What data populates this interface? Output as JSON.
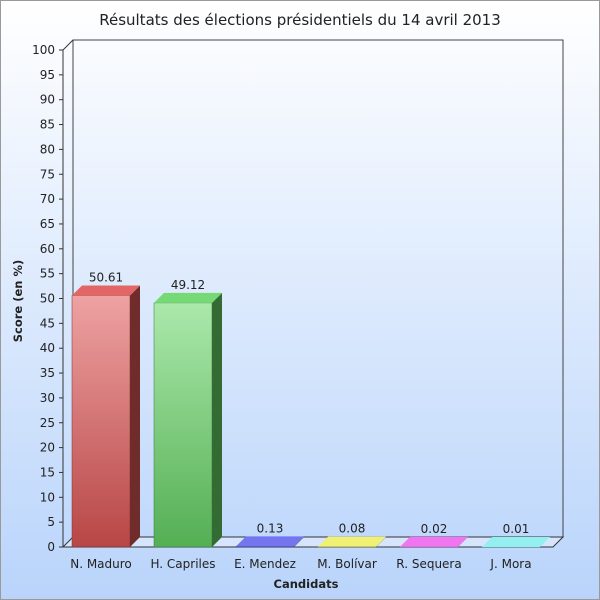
{
  "chart_data": {
    "type": "bar",
    "title": "Résultats des élections présidentiels du 14 avril 2013",
    "xlabel": "Candidats",
    "ylabel": "Score (en %)",
    "categories": [
      "N. Maduro",
      "H. Capriles",
      "E. Mendez",
      "M. Bolívar",
      "R. Sequera",
      "J. Mora"
    ],
    "values": [
      50.61,
      49.12,
      0.13,
      0.08,
      0.02,
      0.01
    ],
    "value_labels": [
      "50.61",
      "49.12",
      "0.13",
      "0.08",
      "0.02",
      "0.01"
    ],
    "ylim": [
      0,
      100
    ],
    "yticks": [
      0,
      5,
      10,
      15,
      20,
      25,
      30,
      35,
      40,
      45,
      50,
      55,
      60,
      65,
      70,
      75,
      80,
      85,
      90,
      95,
      100
    ],
    "grid": false,
    "legend": "none",
    "colors": [
      "#e05555",
      "#66d666",
      "#6666ee",
      "#eeee66",
      "#ee66ee",
      "#88eeee"
    ]
  }
}
